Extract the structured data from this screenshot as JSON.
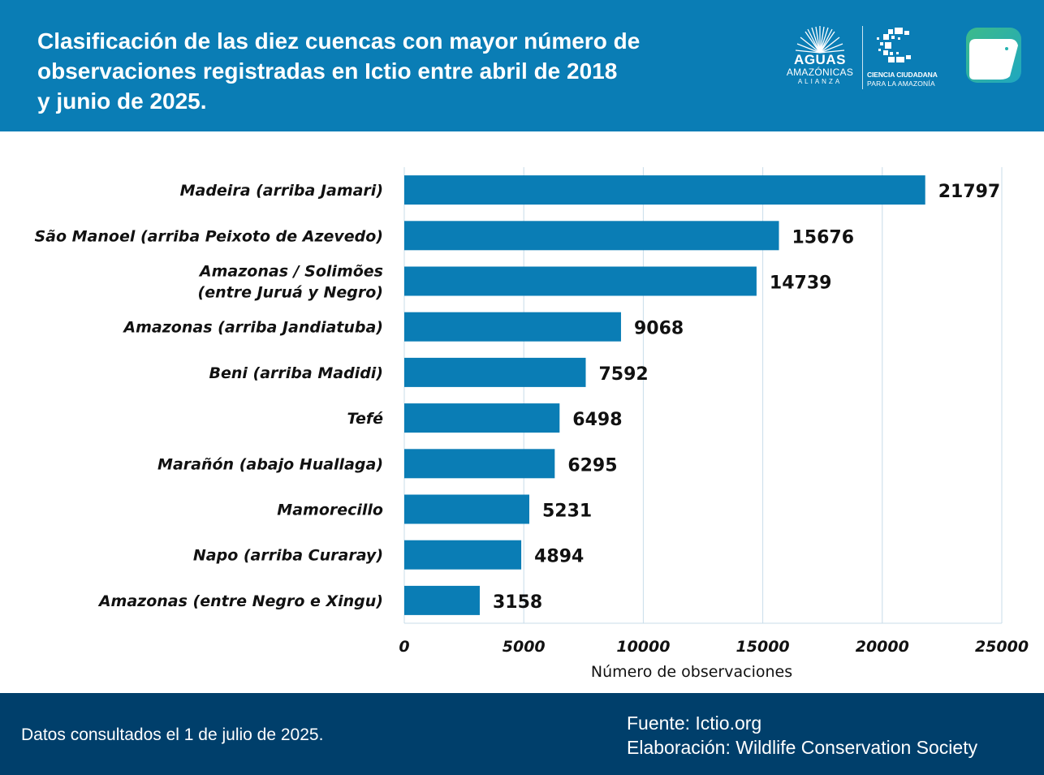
{
  "header": {
    "title_lines": [
      "Clasificación de las diez cuencas con mayor número de",
      "observaciones registradas en Ictio entre abril de 2018",
      "y junio de 2025."
    ],
    "logo_aguas": {
      "line1": "AGUAS",
      "line2": "AMAZÓNICAS",
      "line3": "ALIANZA"
    },
    "logo_ciencia": {
      "line1": "CIENCIA CIUDADANA",
      "line2": "PARA LA AMAZONÍA"
    }
  },
  "colors": {
    "header_bg": "#0a7db5",
    "bar": "#0a7db5",
    "footer_bg": "#003f6b",
    "grid": "#c8dcea",
    "ictio_teal": "#25b3b0",
    "ictio_green": "#3dbb8a"
  },
  "chart_data": {
    "type": "bar",
    "orientation": "horizontal",
    "title": "Clasificación de las diez cuencas con mayor número de observaciones registradas en Ictio entre abril de 2018 y junio de 2025.",
    "categories": [
      [
        "Madeira (arriba Jamari)"
      ],
      [
        "São Manoel (arriba Peixoto de Azevedo)"
      ],
      [
        "Amazonas / Solimões",
        "(entre Juruá y Negro)"
      ],
      [
        "Amazonas (arriba Jandiatuba)"
      ],
      [
        "Beni (arriba Madidi)"
      ],
      [
        "Tefé"
      ],
      [
        "Marañón (abajo Huallaga)"
      ],
      [
        "Mamorecillo"
      ],
      [
        "Napo (arriba Curaray)"
      ],
      [
        "Amazonas (entre Negro e Xingu)"
      ]
    ],
    "values": [
      21797,
      15676,
      14739,
      9068,
      7592,
      6498,
      6295,
      5231,
      4894,
      3158
    ],
    "xlabel": "Número de observaciones",
    "ylabel": "",
    "xlim": [
      0,
      25000
    ],
    "xticks": [
      0,
      5000,
      10000,
      15000,
      20000,
      25000
    ],
    "grid": true,
    "legend": "none"
  },
  "footer": {
    "left": "Datos consultados el 1 de julio de 2025.",
    "right_line1": "Fuente: Ictio.org",
    "right_line2": "Elaboración: Wildlife Conservation Society"
  }
}
